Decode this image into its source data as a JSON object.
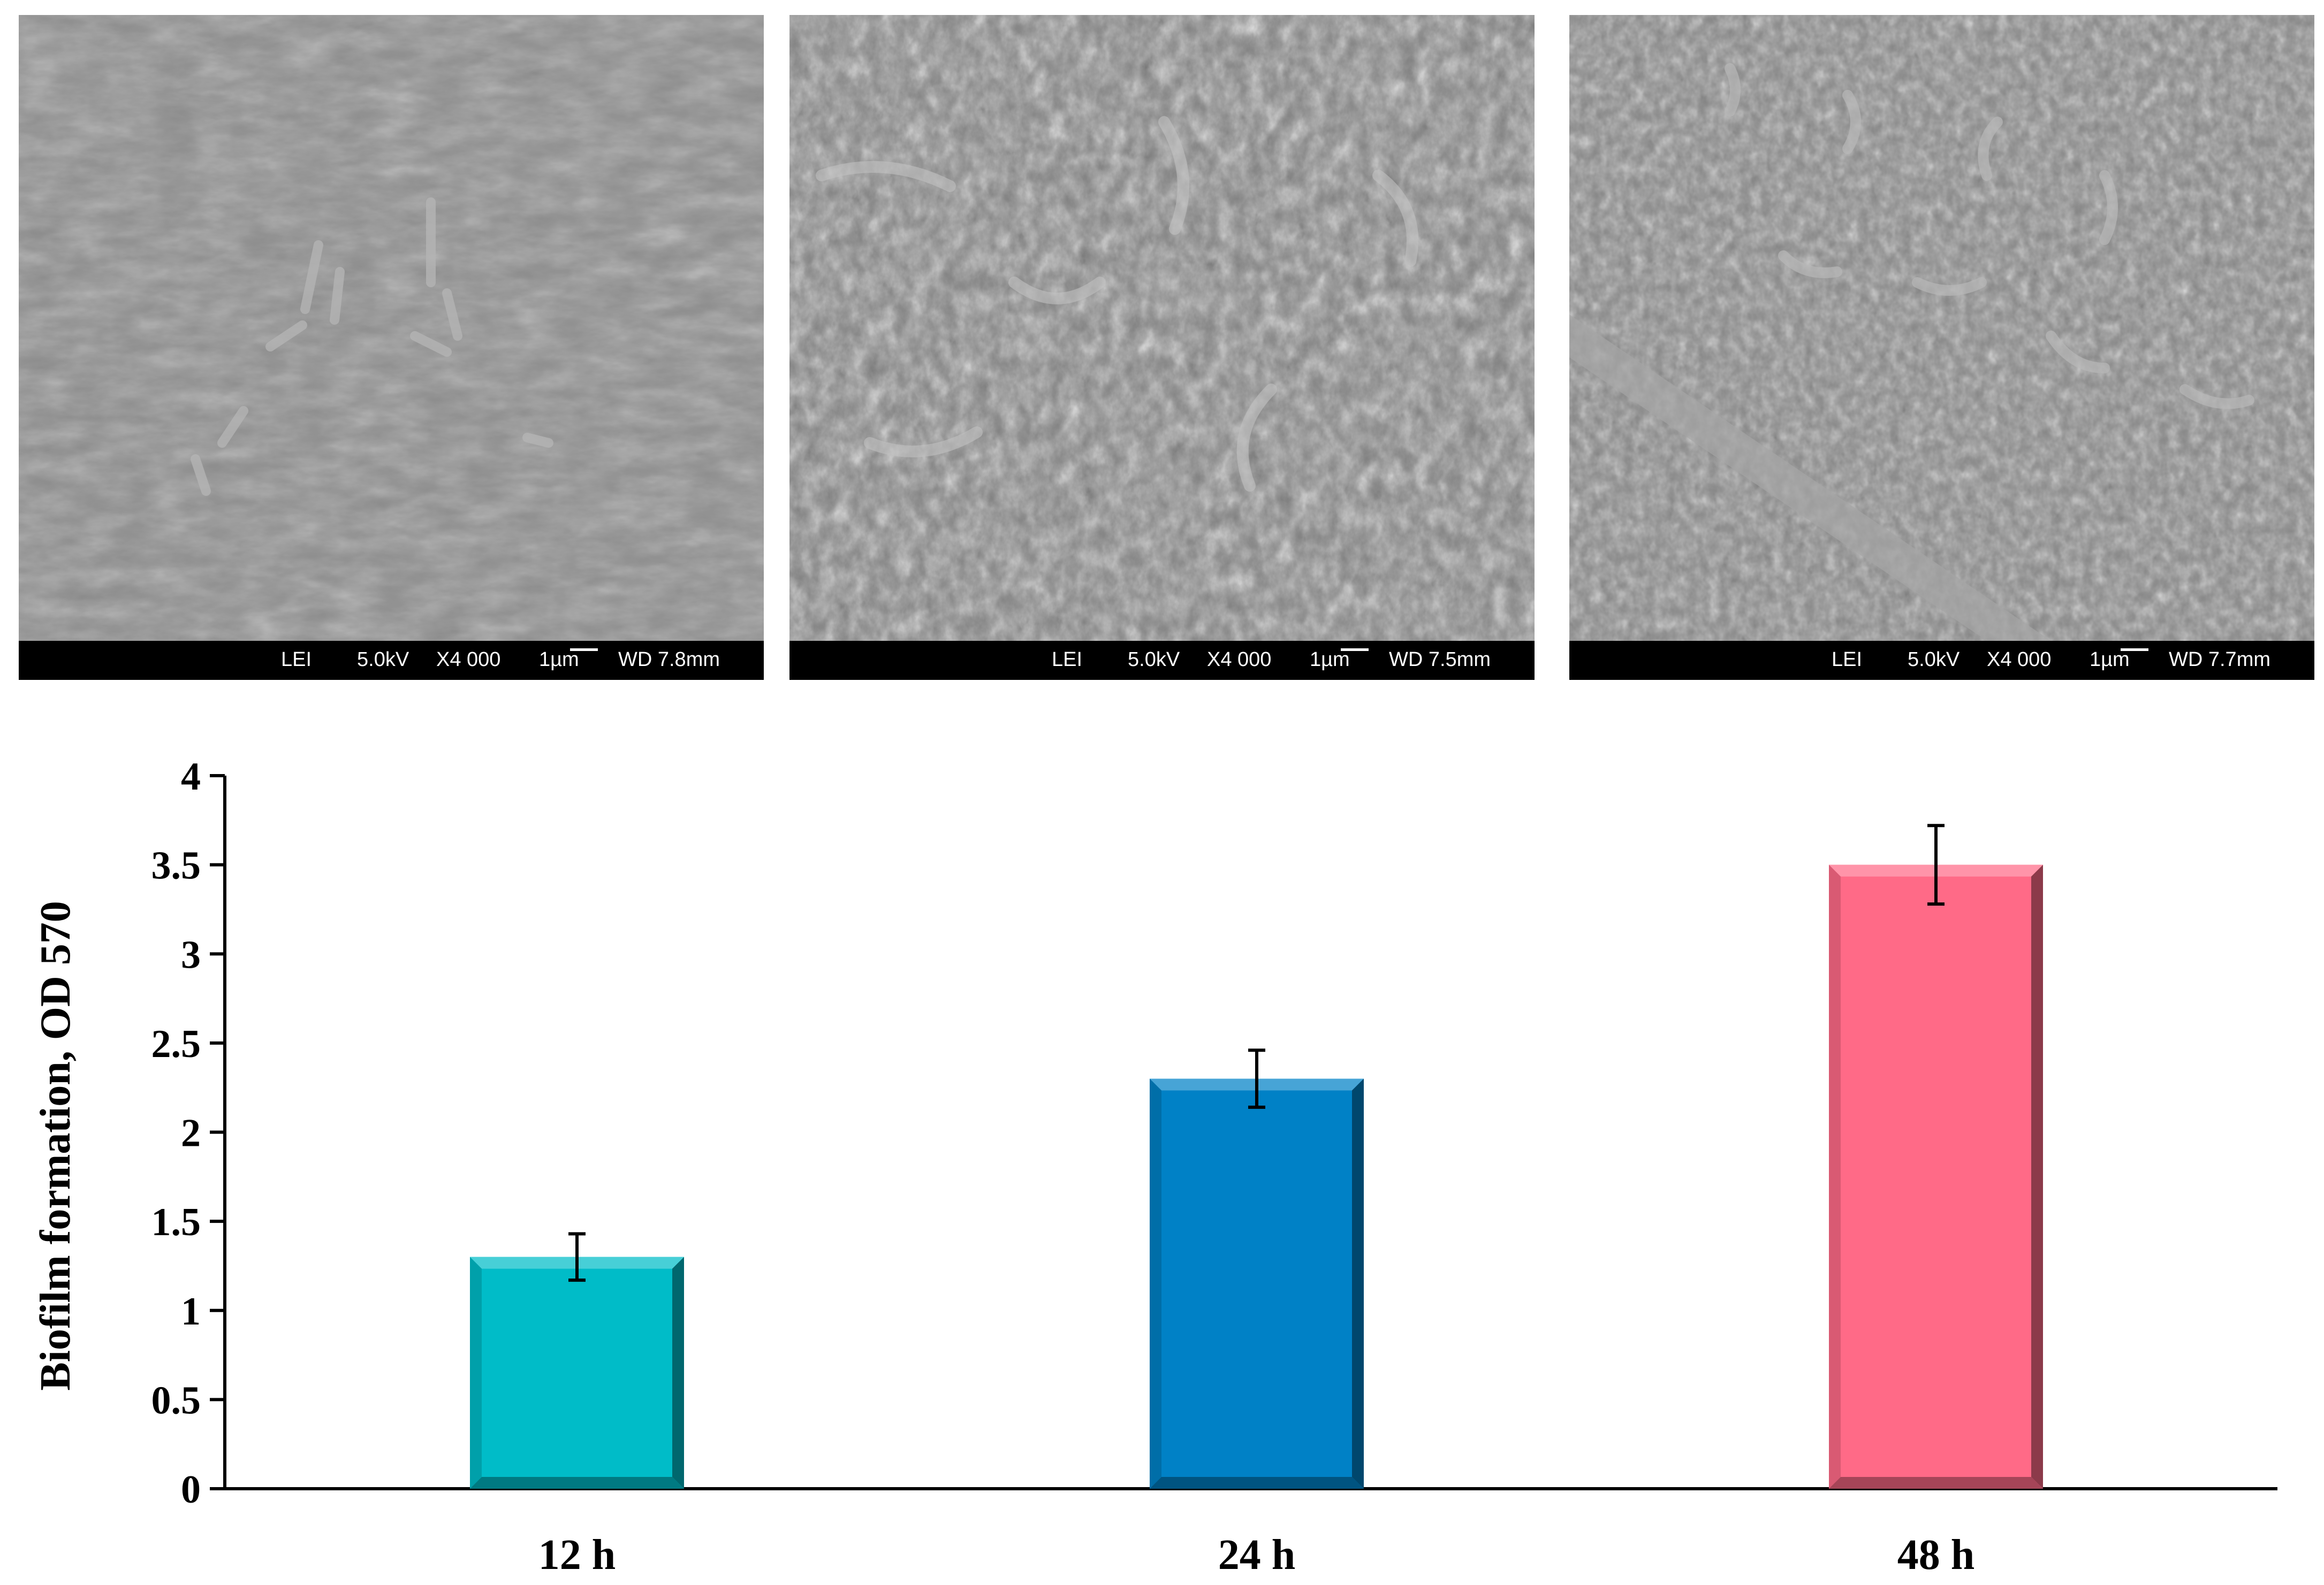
{
  "panels": [
    {
      "mode": "LEI",
      "voltage": "5.0kV",
      "mag": "X4 000",
      "scale": "1µm",
      "wd": "WD 7.8mm"
    },
    {
      "mode": "LEI",
      "voltage": "5.0kV",
      "mag": "X4 000",
      "scale": "1µm",
      "wd": "WD 7.5mm"
    },
    {
      "mode": "LEI",
      "voltage": "5.0kV",
      "mag": "X4 000",
      "scale": "1µm",
      "wd": "WD 7.7mm"
    }
  ],
  "chart_data": {
    "type": "bar",
    "categories": [
      "12 h",
      "24 h",
      "48 h"
    ],
    "values": [
      1.3,
      2.3,
      3.5
    ],
    "errors": [
      0.13,
      0.16,
      0.22
    ],
    "colors": [
      "#00bcc8",
      "#0081c6",
      "#ff6a87"
    ],
    "ylabel": "Biofilm formation, OD 570",
    "ylim": [
      0,
      4
    ],
    "yticks": [
      "0",
      "0.5",
      "1",
      "1.5",
      "2",
      "2.5",
      "3",
      "3.5",
      "4"
    ],
    "grid": false,
    "legend": "none"
  }
}
